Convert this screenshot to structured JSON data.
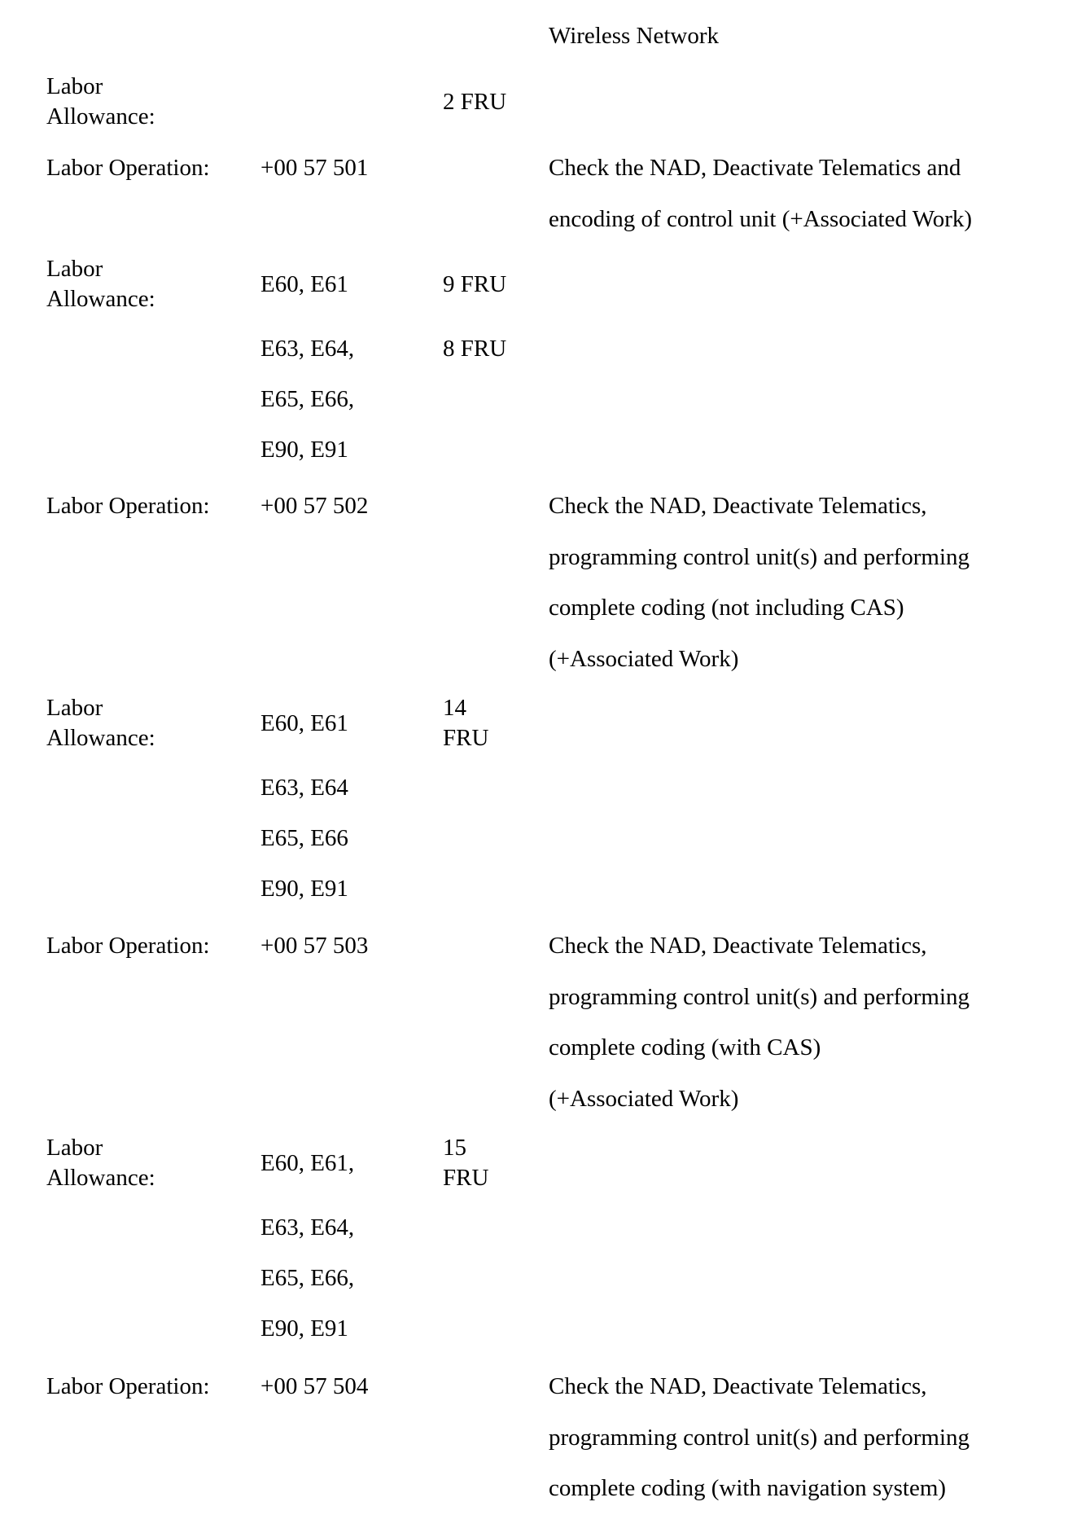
{
  "header_continuation": "Wireless Network",
  "blocks": [
    {
      "type": "allowance",
      "label": [
        "Labor",
        "Allowance:"
      ],
      "rows": [
        {
          "models": "",
          "fru": [
            "2 FRU"
          ]
        }
      ]
    },
    {
      "type": "operation",
      "label": "Labor Operation:",
      "code": "+00 57 501",
      "description": [
        "Check the NAD, Deactivate Telematics and",
        "encoding of control unit (+Associated Work)"
      ]
    },
    {
      "type": "allowance",
      "label": [
        "Labor",
        "Allowance:"
      ],
      "rows": [
        {
          "models": "E60, E61",
          "fru": [
            "9 FRU"
          ]
        },
        {
          "models": "E63, E64,",
          "fru": [
            "8 FRU"
          ]
        },
        {
          "models": "E65, E66,",
          "fru": []
        },
        {
          "models": "E90, E91",
          "fru": []
        }
      ]
    },
    {
      "type": "operation",
      "label": "Labor Operation:",
      "code": "+00 57 502",
      "description": [
        "Check the NAD, Deactivate Telematics,",
        "programming control unit(s) and performing",
        "complete coding (not including CAS)",
        "(+Associated Work)"
      ]
    },
    {
      "type": "allowance",
      "label": [
        "Labor",
        "Allowance:"
      ],
      "rows": [
        {
          "models": "E60, E61",
          "fru": [
            "14",
            "FRU"
          ]
        },
        {
          "models": "E63, E64",
          "fru": []
        },
        {
          "models": "E65, E66",
          "fru": []
        },
        {
          "models": "E90, E91",
          "fru": []
        }
      ]
    },
    {
      "type": "operation",
      "label": "Labor Operation:",
      "code": "+00 57 503",
      "description": [
        "Check the NAD, Deactivate Telematics,",
        "programming control unit(s) and performing",
        "complete coding (with CAS)",
        "(+Associated Work)"
      ]
    },
    {
      "type": "allowance",
      "label": [
        "Labor",
        "Allowance:"
      ],
      "rows": [
        {
          "models": "E60, E61,",
          "fru": [
            "15",
            "FRU"
          ]
        },
        {
          "models": "E63, E64,",
          "fru": []
        },
        {
          "models": "E65, E66,",
          "fru": []
        },
        {
          "models": "E90, E91",
          "fru": []
        }
      ]
    },
    {
      "type": "operation",
      "label": "Labor Operation:",
      "code": "+00 57 504",
      "description": [
        "Check the NAD, Deactivate Telematics,",
        "programming control unit(s) and performing",
        "complete coding (with navigation system)"
      ]
    }
  ]
}
